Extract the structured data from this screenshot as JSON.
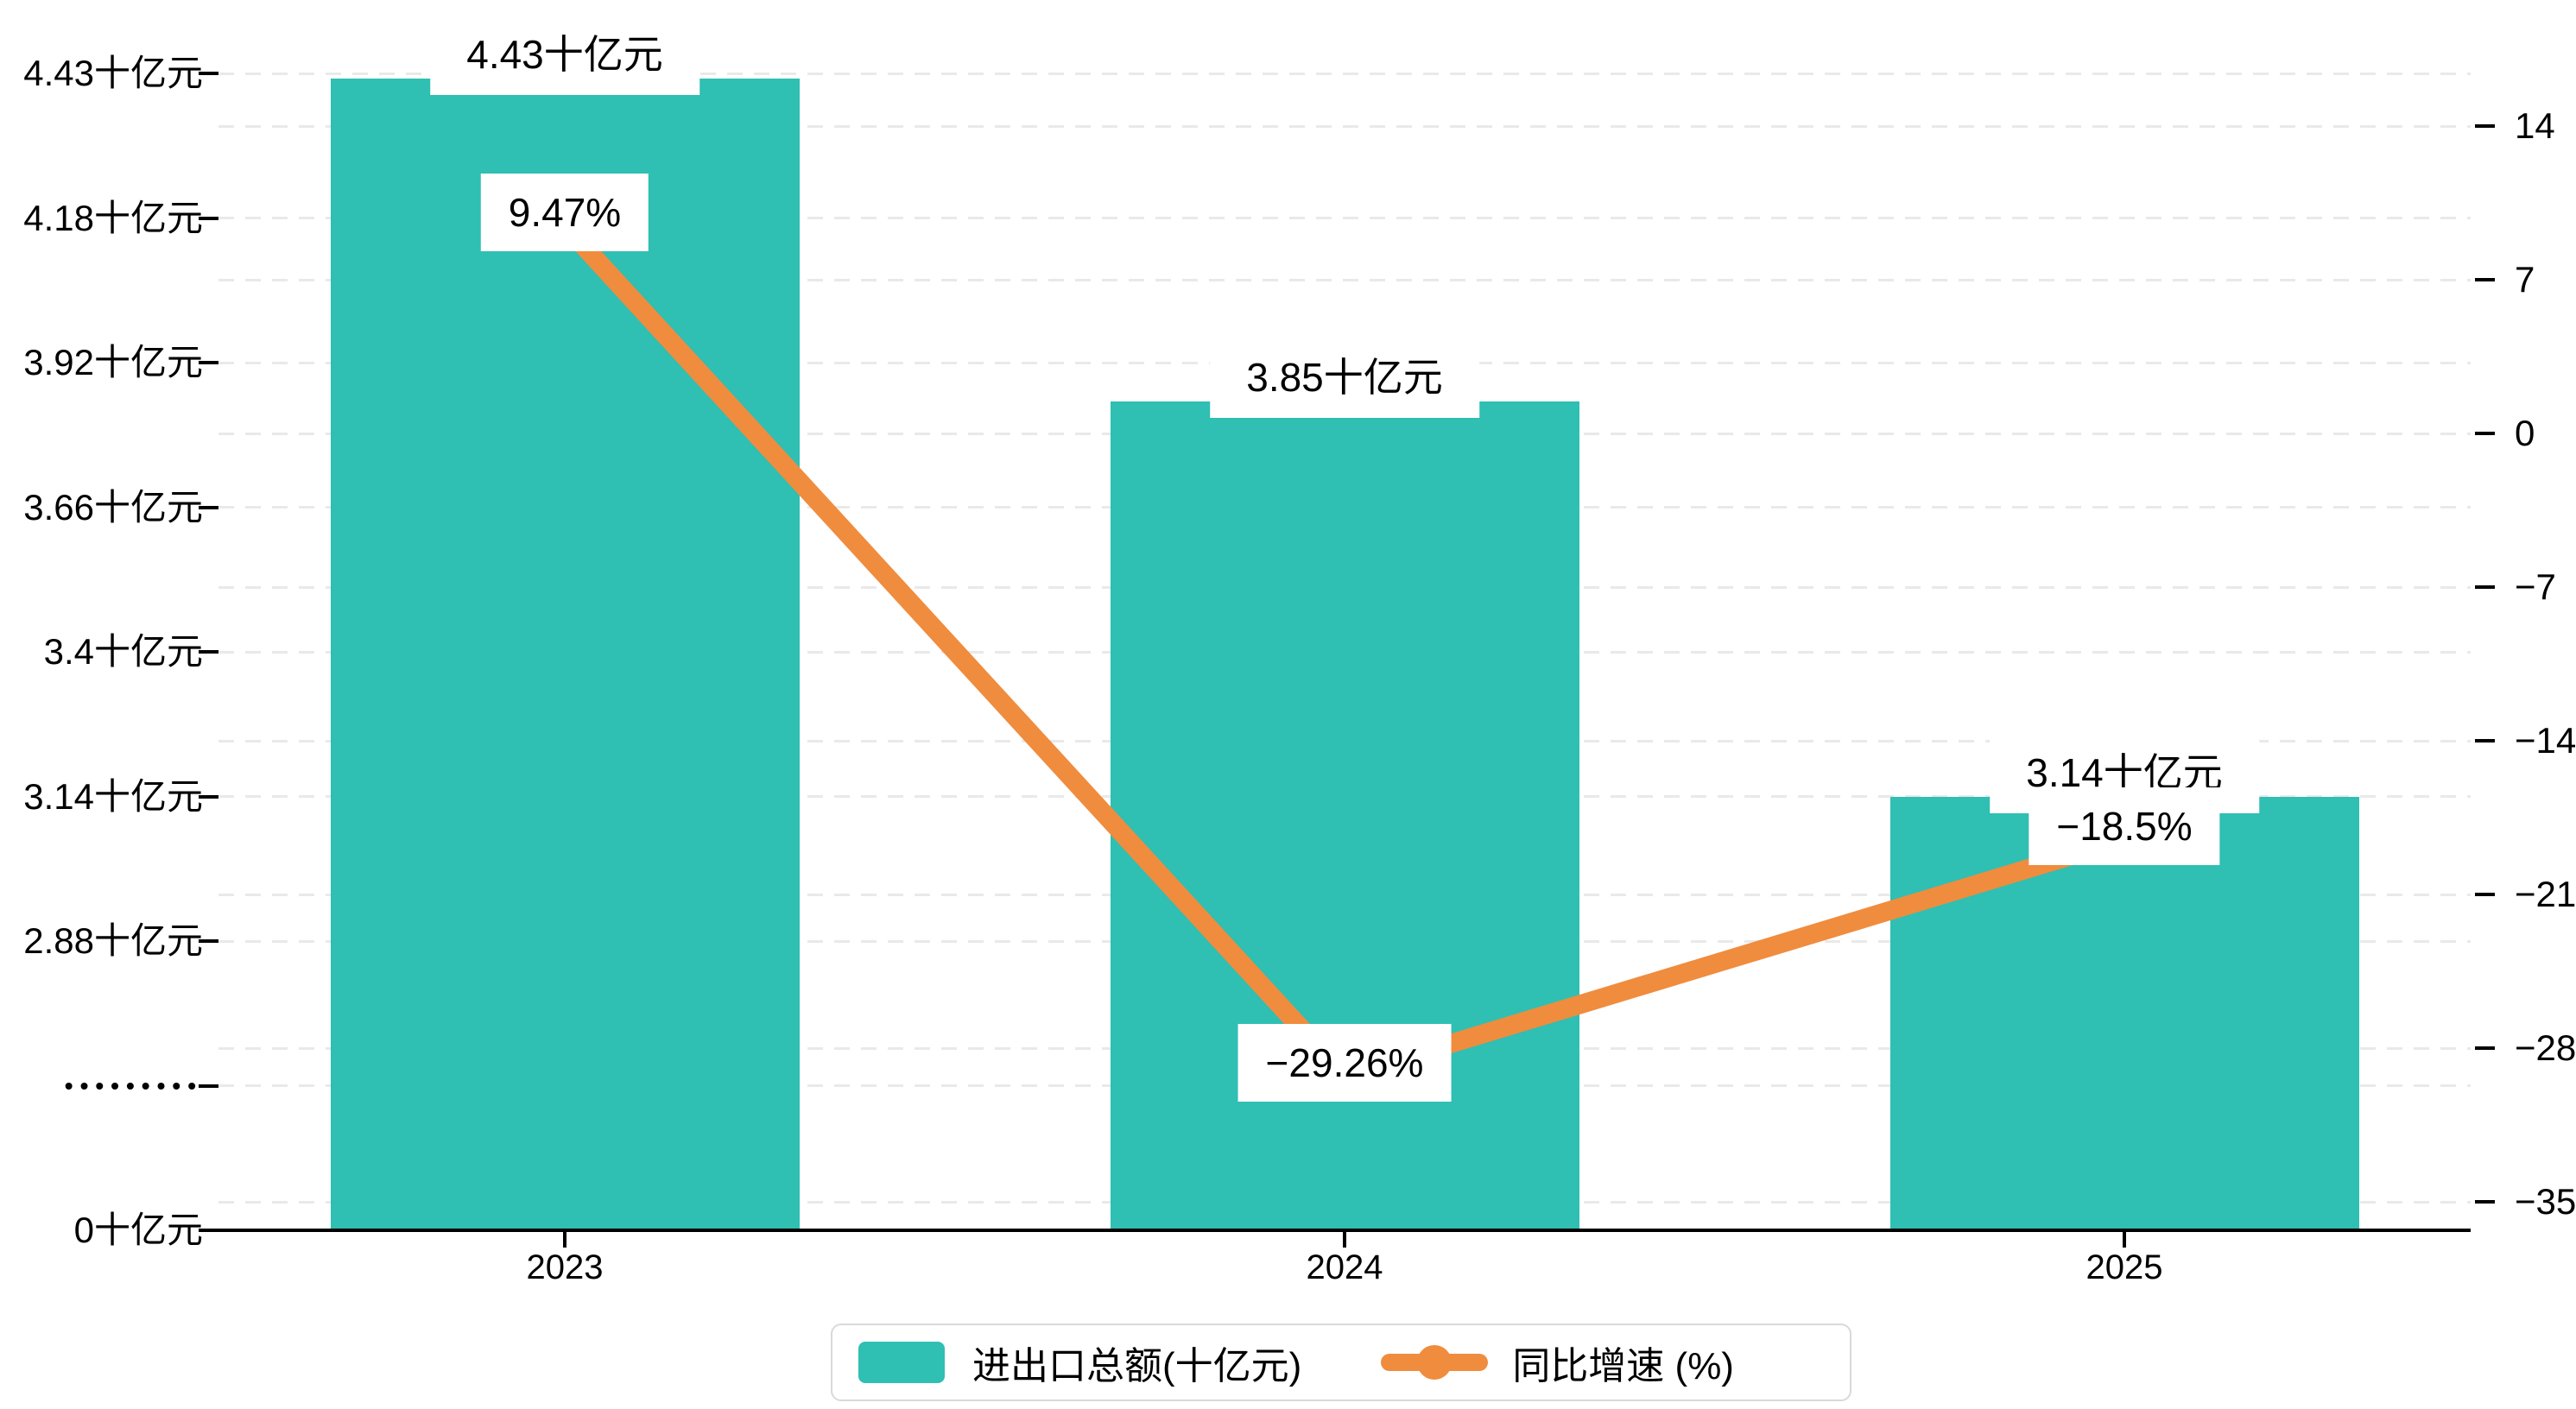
{
  "chart_data": {
    "type": "bar",
    "subtype": "bar+line dual axis combo",
    "categories": [
      "2023",
      "2024",
      "2025"
    ],
    "series": [
      {
        "name": "进出口总额(十亿元)",
        "type": "bar",
        "axis": "left",
        "values": [
          4.43,
          3.85,
          3.14
        ],
        "labels": [
          "4.43十亿元",
          "3.85十亿元",
          "3.14十亿元"
        ],
        "color": "#2FBFB3"
      },
      {
        "name": "同比增速 (%)",
        "type": "line",
        "axis": "right",
        "values": [
          9.47,
          -29.26,
          -18.5
        ],
        "labels": [
          "9.47%",
          "−29.26%",
          "−18.5%"
        ],
        "color": "#F08C3E"
      }
    ],
    "x_axis": {
      "tick_labels": [
        "2023",
        "2024",
        "2025"
      ]
    },
    "left_axis": {
      "tick_labels_bottom_to_top": [
        "0十亿元",
        "•••••••••",
        "2.88十亿元",
        "3.14十亿元",
        "3.4十亿元",
        "3.66十亿元",
        "3.92十亿元",
        "4.18十亿元",
        "4.43十亿元"
      ],
      "has_scale_break": true,
      "unit": "十亿元"
    },
    "right_axis": {
      "tick_labels_top_to_bottom": [
        "14",
        "7",
        "0",
        "−7",
        "−14",
        "−21",
        "−28",
        "−35"
      ],
      "range": [
        -35,
        14
      ],
      "step": 7,
      "unit": "%"
    },
    "legend": {
      "position": "bottom-center",
      "items": [
        "进出口总额(十亿元)",
        "同比增速 (%)"
      ]
    },
    "grid": "horizontal dashed gridlines for both left-axis and right-axis ticks",
    "colors": {
      "bar": "#2FBFB3",
      "line": "#F08C3E",
      "grid": "#e9e9e9",
      "axis": "#000000",
      "text": "#000000",
      "label_bg": "#ffffff",
      "legend_border": "#d9d9d9",
      "background": "#ffffff"
    }
  }
}
